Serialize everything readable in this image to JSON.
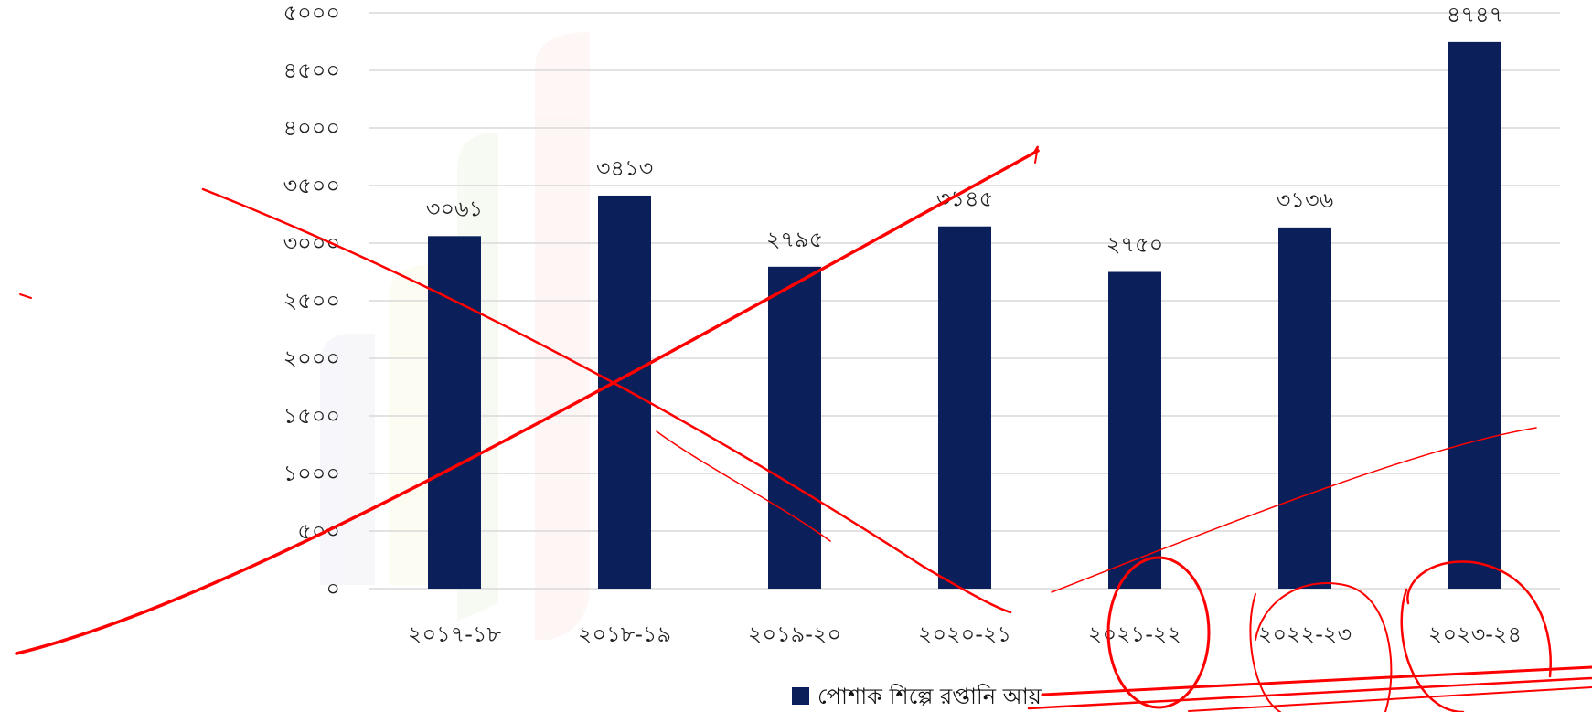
{
  "chart_data": {
    "type": "bar",
    "categories": [
      "২০১৭-১৮",
      "২০১৮-১৯",
      "২০১৯-২০",
      "২০২০-২১",
      "২০২১-২২",
      "২০২২-২৩",
      "২০২৩-২৪"
    ],
    "series": [
      {
        "name": "পোশাক শিল্পে রপ্তানি আয়",
        "values": [
          3061,
          3413,
          2795,
          3145,
          2750,
          3136,
          4747
        ],
        "value_labels": [
          "৩০৬১",
          "৩৪১৩",
          "২৭৯৫",
          "৩১৪৫",
          "২৭৫০",
          "৩১৩৬",
          "৪৭৪৭"
        ]
      }
    ],
    "ylim": [
      0,
      5000
    ],
    "yticks": [
      0,
      500,
      1000,
      1500,
      2000,
      2500,
      3000,
      3500,
      4000,
      4500,
      5000
    ],
    "ytick_labels": [
      "০",
      "৫০০",
      "১০০০",
      "১৫০০",
      "২০০০",
      "২৫০০",
      "৩০০০",
      "৩৫০০",
      "৪০০০",
      "৪৫০০",
      "৫০০০"
    ],
    "grid": true,
    "legend": "bottom-center",
    "colors": {
      "bar": "#0b1f5b",
      "grid": "#d9d9d9",
      "annotation": "#ff0000"
    }
  }
}
